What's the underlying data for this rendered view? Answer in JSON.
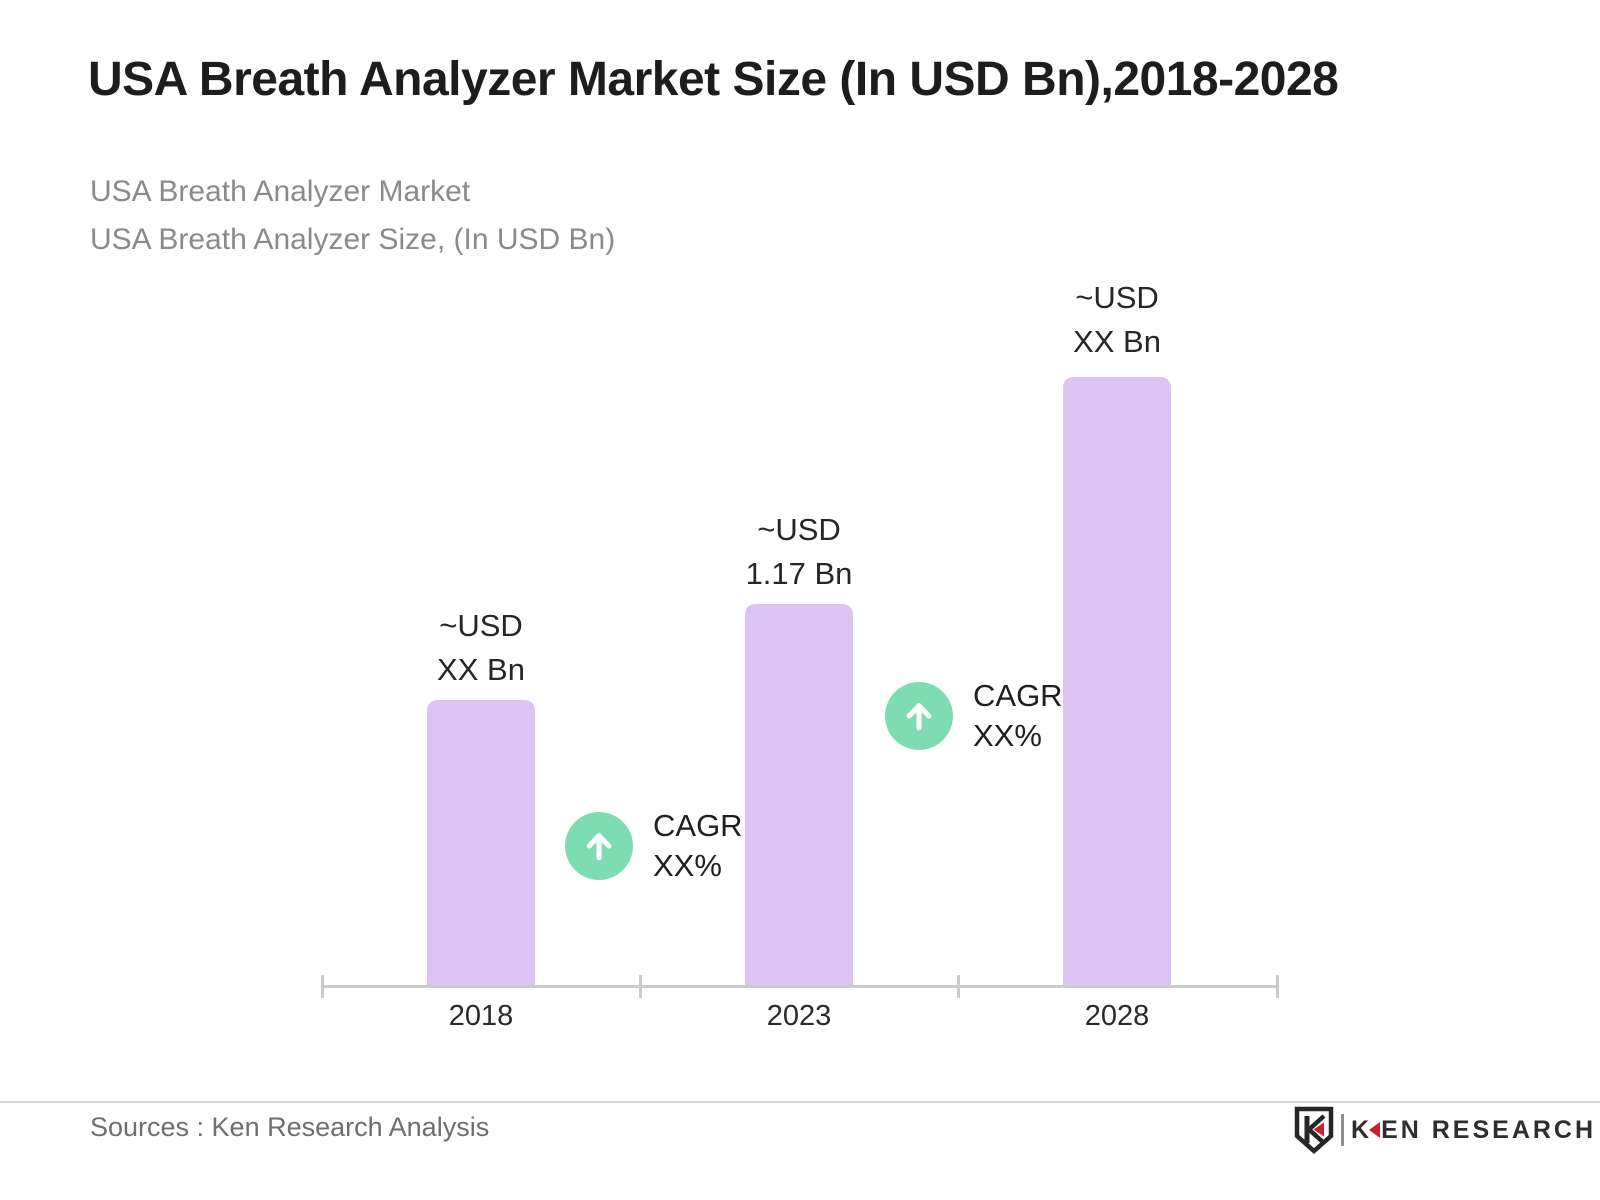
{
  "header": {
    "title": "USA Breath Analyzer Market Size (In USD Bn),2018-2028",
    "subtitle_line1": "USA Breath Analyzer Market",
    "subtitle_line2": "USA Breath Analyzer Size, (In USD Bn)"
  },
  "chart_data": {
    "type": "bar",
    "title": "USA Breath Analyzer Market Size (In USD Bn),2018-2028",
    "categories": [
      "2018",
      "2023",
      "2028"
    ],
    "values": [
      null,
      1.17,
      null
    ],
    "values_display": [
      "~USD XX Bn",
      "~USD 1.17 Bn",
      "~USD XX Bn"
    ],
    "value_labels": [
      {
        "line1": "~USD",
        "line2": "XX Bn"
      },
      {
        "line1": "~USD",
        "line2": "1.17 Bn"
      },
      {
        "line1": "~USD",
        "line2": "XX Bn"
      }
    ],
    "bar_heights_relative": [
      0.47,
      0.627,
      1.0
    ],
    "unit": "USD Bn",
    "xlabel": "",
    "ylabel": "",
    "grid": "off",
    "legend": "none",
    "annotations": [
      {
        "icon": "up-arrow-circle-icon",
        "line1": "CAGR",
        "line2": "XX%",
        "position": "between 2018 and 2023"
      },
      {
        "icon": "up-arrow-circle-icon",
        "line1": "CAGR",
        "line2": "XX%",
        "position": "between 2023 and 2028"
      }
    ],
    "colors": {
      "bar_fill": "#DCC4F2",
      "annotation_circle": "#7EDCB2",
      "axis_line": "#CBCBCB",
      "title_text": "#1D1D1D",
      "subtitle_text": "#8A8A8A",
      "footer_text": "#6E6E6E",
      "logo_red": "#C8202F"
    }
  },
  "footer": {
    "source_text": "Sources : Ken Research Analysis",
    "logo": {
      "icon": "ken-research-shield-icon",
      "text_k": "K",
      "text_rest": "EN RESEARCH"
    }
  }
}
